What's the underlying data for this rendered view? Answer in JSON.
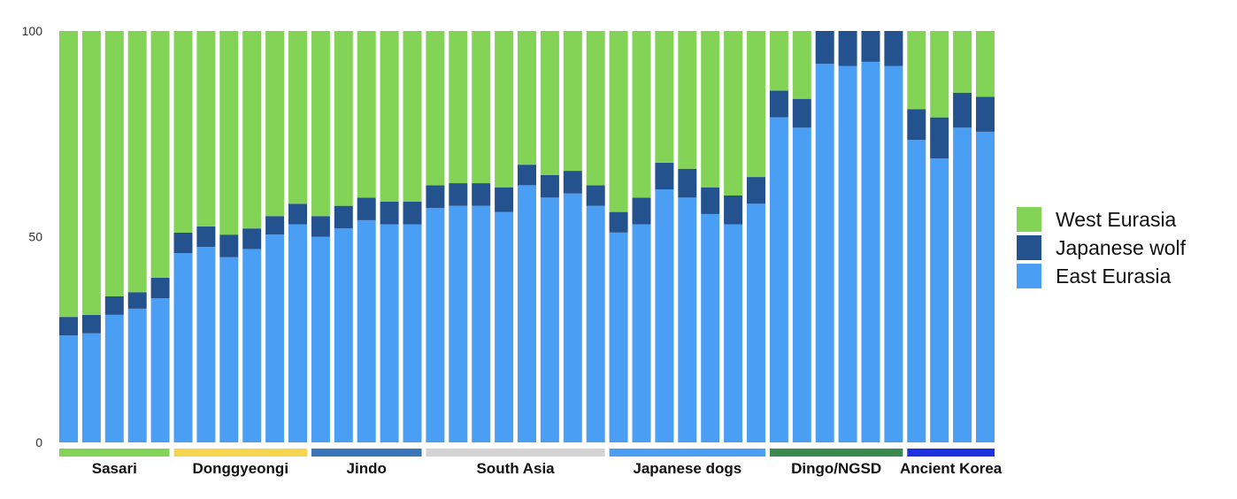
{
  "chart_data": {
    "type": "bar",
    "stacked": true,
    "ylim": [
      0,
      100
    ],
    "yticks": [
      0,
      50,
      100
    ],
    "grid": false,
    "legend_position": "right",
    "series": [
      {
        "name": "East Eurasia",
        "color": "#4a9ff5",
        "values": [
          26,
          26.5,
          31,
          32.5,
          35,
          46,
          47.5,
          45,
          47,
          50.5,
          53,
          50,
          52,
          54,
          53,
          53,
          57,
          57.5,
          57.5,
          56,
          62.5,
          59.5,
          60.5,
          57.5,
          51,
          53,
          61.5,
          59.5,
          55.5,
          53,
          58,
          79,
          76.5,
          92,
          91.5,
          92.5,
          91.5,
          73.5,
          69,
          76.5,
          75.5
        ]
      },
      {
        "name": "Japanese wolf",
        "color": "#24528e",
        "values": [
          4.5,
          4.5,
          4.5,
          4,
          5,
          5,
          5,
          5.5,
          5,
          4.5,
          5,
          5,
          5.5,
          5.5,
          5.5,
          5.5,
          5.5,
          5.5,
          5.5,
          6,
          5,
          5.5,
          5.5,
          5,
          5,
          6.5,
          6.5,
          7,
          6.5,
          7,
          6.5,
          6.5,
          7,
          8,
          8.5,
          7.5,
          8.5,
          7.5,
          10,
          8.5,
          8.5
        ]
      },
      {
        "name": "West Eurasia",
        "color": "#83d356",
        "values": [
          69.5,
          69,
          64.5,
          63.5,
          60,
          49,
          47.5,
          49.5,
          48,
          45,
          42,
          45,
          42.5,
          40.5,
          41.5,
          41.5,
          37.5,
          37,
          37,
          38,
          32.5,
          35,
          34,
          37.5,
          44,
          40.5,
          32,
          33.5,
          38,
          40,
          35.5,
          14.5,
          16.5,
          0,
          0,
          0,
          0,
          19,
          21,
          15,
          16
        ]
      }
    ],
    "groups": [
      {
        "name": "Sasari",
        "count": 5,
        "color": "#83d356"
      },
      {
        "name": "Donggyeongi",
        "count": 6,
        "color": "#f5d54e"
      },
      {
        "name": "Jindo",
        "count": 5,
        "color": "#3b74b8"
      },
      {
        "name": "South Asia",
        "count": 8,
        "color": "#d3d3d3"
      },
      {
        "name": "Japanese dogs",
        "count": 7,
        "color": "#4a9ff5"
      },
      {
        "name": "Dingo/NGSD",
        "count": 6,
        "color": "#3a8a50"
      },
      {
        "name": "Ancient Korea",
        "count": 4,
        "color": "#1c32e0"
      }
    ]
  }
}
